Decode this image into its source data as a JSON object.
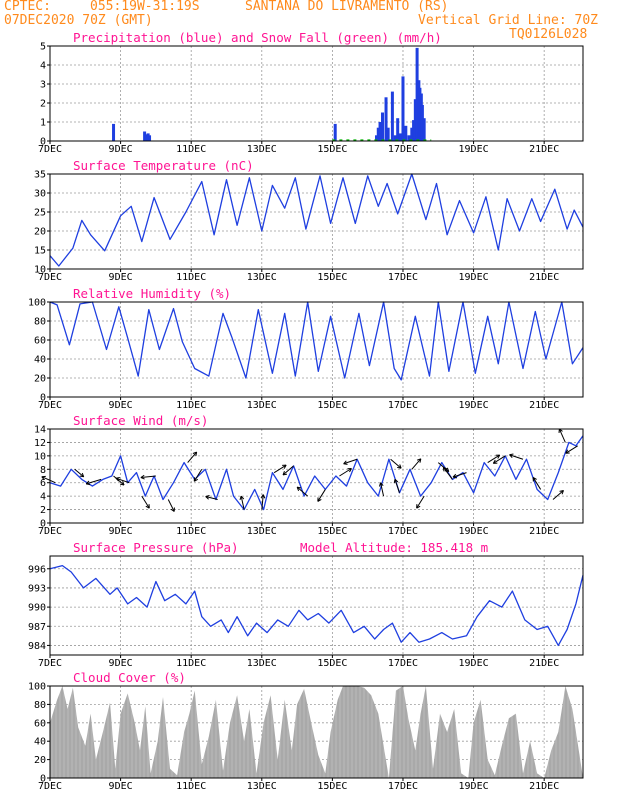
{
  "header": {
    "source": "CPTEC:",
    "coords": "055:19W-31:19S",
    "location": "SANTANA DO LIVRAMENTO (RS)",
    "init": "07DEC2020 70Z (GMT)",
    "grid_note": "Vertical Grid Line: 70Z",
    "product": "TQ0126L028"
  },
  "colors": {
    "header": "#ff8a1c",
    "panel_title": "#ff1493",
    "series": "#1f3fe0",
    "snow": "#00b000",
    "cloud": "#a9a9a9",
    "arrow": "#000000",
    "grid": "#9a9a9a"
  },
  "x_axis": {
    "tick_labels": [
      "7DEC",
      "9DEC",
      "11DEC",
      "13DEC",
      "15DEC",
      "17DEC",
      "19DEC",
      "21DEC"
    ],
    "tick_days": [
      0,
      2,
      4,
      6,
      8,
      10,
      12,
      14
    ],
    "range_days": [
      0,
      15.1
    ]
  },
  "chart_data": [
    {
      "type": "bar",
      "title": "Precipitation (blue) and Snow Fall (green) (mm/h)",
      "ylim": [
        0,
        5
      ],
      "yticks": [
        0,
        1,
        2,
        3,
        4,
        5
      ],
      "series": [
        {
          "name": "Precipitation",
          "x": [
            1.8,
            2.68,
            2.72,
            2.78,
            2.82,
            8.08,
            9.25,
            9.3,
            9.35,
            9.42,
            9.52,
            9.58,
            9.7,
            9.78,
            9.85,
            9.92,
            10.0,
            10.08,
            10.17,
            10.25,
            10.3,
            10.35,
            10.4,
            10.45,
            10.48,
            10.52,
            10.55,
            10.6
          ],
          "values": [
            0.9,
            0.5,
            0.35,
            0.4,
            0.3,
            0.9,
            0.3,
            0.7,
            1.0,
            1.5,
            2.3,
            0.7,
            2.6,
            0.3,
            1.2,
            0.4,
            3.4,
            0.8,
            0.3,
            0.7,
            1.1,
            2.2,
            4.9,
            3.2,
            2.8,
            2.5,
            1.9,
            1.2
          ]
        },
        {
          "name": "Snow Fall",
          "x": [],
          "values": []
        }
      ]
    },
    {
      "type": "line",
      "title": "Surface Temperature (nC)",
      "ylim": [
        10,
        35
      ],
      "yticks": [
        10,
        15,
        20,
        25,
        30,
        35
      ],
      "x": [
        0,
        0.25,
        0.65,
        0.9,
        1.15,
        1.55,
        2.0,
        2.3,
        2.6,
        2.95,
        3.4,
        3.85,
        4.3,
        4.65,
        5.0,
        5.3,
        5.65,
        6.0,
        6.3,
        6.65,
        6.95,
        7.25,
        7.65,
        7.95,
        8.3,
        8.65,
        9.0,
        9.3,
        9.55,
        9.85,
        10.25,
        10.65,
        10.95,
        11.25,
        11.6,
        12.0,
        12.35,
        12.7,
        12.95,
        13.3,
        13.65,
        13.9,
        14.3,
        14.65,
        14.85,
        15.1
      ],
      "values": [
        13.5,
        10.8,
        15.5,
        22.8,
        19.0,
        14.8,
        24.0,
        26.5,
        17.2,
        28.8,
        17.8,
        25.0,
        33.0,
        19.0,
        33.5,
        21.5,
        34.0,
        20.0,
        32.0,
        26.0,
        34.0,
        20.5,
        34.5,
        22.0,
        34.0,
        22.0,
        34.5,
        26.5,
        32.5,
        24.5,
        35.0,
        23.0,
        32.5,
        19.0,
        28.0,
        19.5,
        29.0,
        15.0,
        28.5,
        20.0,
        28.5,
        22.5,
        31.0,
        20.5,
        25.5,
        21.0
      ]
    },
    {
      "type": "line",
      "title": "Relative Humidity (%)",
      "ylim": [
        0,
        100
      ],
      "yticks": [
        0,
        20,
        40,
        60,
        80,
        100
      ],
      "x": [
        0,
        0.2,
        0.55,
        0.85,
        1.2,
        1.6,
        1.95,
        2.2,
        2.5,
        2.8,
        3.1,
        3.5,
        3.75,
        4.1,
        4.5,
        4.9,
        5.15,
        5.55,
        5.9,
        6.3,
        6.65,
        6.95,
        7.3,
        7.6,
        7.95,
        8.35,
        8.75,
        9.05,
        9.45,
        9.75,
        9.95,
        10.35,
        10.75,
        11.0,
        11.3,
        11.7,
        12.05,
        12.4,
        12.7,
        13.0,
        13.4,
        13.75,
        14.05,
        14.5,
        14.8,
        15.1
      ],
      "values": [
        100,
        97,
        55,
        98,
        100,
        50,
        95,
        62,
        22,
        92,
        50,
        93,
        58,
        30,
        22,
        88,
        63,
        20,
        92,
        25,
        88,
        22,
        100,
        27,
        85,
        20,
        88,
        33,
        100,
        30,
        18,
        85,
        22,
        100,
        27,
        100,
        25,
        85,
        35,
        100,
        30,
        90,
        40,
        100,
        35,
        52
      ]
    },
    {
      "type": "line",
      "title": "Surface Wind (m/s)",
      "ylim": [
        0,
        14
      ],
      "yticks": [
        0,
        2,
        4,
        6,
        8,
        10,
        12,
        14
      ],
      "x": [
        0,
        0.3,
        0.6,
        0.9,
        1.2,
        1.5,
        1.75,
        2.0,
        2.2,
        2.45,
        2.7,
        2.95,
        3.2,
        3.5,
        3.8,
        4.1,
        4.4,
        4.7,
        5.0,
        5.2,
        5.5,
        5.8,
        6.05,
        6.3,
        6.6,
        6.9,
        7.2,
        7.5,
        7.8,
        8.1,
        8.4,
        8.7,
        9.0,
        9.3,
        9.6,
        9.9,
        10.2,
        10.5,
        10.8,
        11.1,
        11.4,
        11.7,
        12.0,
        12.3,
        12.6,
        12.9,
        13.2,
        13.5,
        13.8,
        14.1,
        14.4,
        14.7,
        14.9,
        15.1
      ],
      "values": [
        6.0,
        5.5,
        8.0,
        6.5,
        5.5,
        6.5,
        7.0,
        10.0,
        6.0,
        7.5,
        4.0,
        7.0,
        3.5,
        6.0,
        9.0,
        6.5,
        8.0,
        3.5,
        8.0,
        4.0,
        2.0,
        5.0,
        2.0,
        7.5,
        5.0,
        8.5,
        4.0,
        7.0,
        5.0,
        7.0,
        5.5,
        9.5,
        6.0,
        4.0,
        9.5,
        4.5,
        8.0,
        4.0,
        6.0,
        9.0,
        6.5,
        7.5,
        4.5,
        9.0,
        7.0,
        10.0,
        6.5,
        9.5,
        5.0,
        3.5,
        7.5,
        12.0,
        11.5,
        13.0
      ],
      "vectors": [
        {
          "day": 0.15,
          "dx": -0.9,
          "dy": 0.4
        },
        {
          "day": 0.7,
          "dx": 0.6,
          "dy": -0.5
        },
        {
          "day": 1.45,
          "dx": -1.0,
          "dy": -0.3
        },
        {
          "day": 1.8,
          "dx": 0.7,
          "dy": -0.6
        },
        {
          "day": 2.25,
          "dx": -0.9,
          "dy": 0.3
        },
        {
          "day": 2.6,
          "dx": 0.5,
          "dy": -0.8
        },
        {
          "day": 3.0,
          "dx": -1.0,
          "dy": -0.1
        },
        {
          "day": 3.35,
          "dx": 0.4,
          "dy": -0.8
        },
        {
          "day": 3.9,
          "dx": 0.6,
          "dy": 0.7
        },
        {
          "day": 4.3,
          "dx": -0.5,
          "dy": -0.8
        },
        {
          "day": 4.75,
          "dx": -0.8,
          "dy": 0.2
        },
        {
          "day": 5.5,
          "dx": -0.2,
          "dy": 0.9
        },
        {
          "day": 6.0,
          "dx": 0.1,
          "dy": 1.0
        },
        {
          "day": 6.35,
          "dx": 0.8,
          "dy": 0.5
        },
        {
          "day": 6.9,
          "dx": -0.7,
          "dy": -0.6
        },
        {
          "day": 7.3,
          "dx": -0.7,
          "dy": 0.6
        },
        {
          "day": 7.8,
          "dx": -0.5,
          "dy": -0.8
        },
        {
          "day": 8.2,
          "dx": 0.8,
          "dy": 0.5
        },
        {
          "day": 8.7,
          "dx": -0.9,
          "dy": -0.3
        },
        {
          "day": 9.45,
          "dx": -0.2,
          "dy": 0.9
        },
        {
          "day": 9.65,
          "dx": 0.7,
          "dy": -0.6
        },
        {
          "day": 9.9,
          "dx": -0.3,
          "dy": 0.9
        },
        {
          "day": 10.25,
          "dx": 0.6,
          "dy": 0.7
        },
        {
          "day": 10.6,
          "dx": -0.5,
          "dy": -0.8
        },
        {
          "day": 11.0,
          "dx": 0.7,
          "dy": -0.6
        },
        {
          "day": 11.4,
          "dx": -0.6,
          "dy": 0.8
        },
        {
          "day": 11.8,
          "dx": -0.9,
          "dy": -0.3
        },
        {
          "day": 12.4,
          "dx": 0.8,
          "dy": 0.5
        },
        {
          "day": 12.9,
          "dx": -0.8,
          "dy": -0.5
        },
        {
          "day": 13.4,
          "dx": -0.9,
          "dy": 0.3
        },
        {
          "day": 13.9,
          "dx": -0.5,
          "dy": 0.8
        },
        {
          "day": 14.25,
          "dx": 0.7,
          "dy": 0.6
        },
        {
          "day": 14.6,
          "dx": -0.4,
          "dy": 0.9
        },
        {
          "day": 14.95,
          "dx": -0.8,
          "dy": -0.5
        }
      ]
    },
    {
      "type": "line",
      "title": "Surface Pressure (hPa)",
      "annotation": "Model Altitude: 185.418 m",
      "ylim": [
        982.5,
        998
      ],
      "yticks": [
        984,
        987,
        990,
        993,
        996
      ],
      "x": [
        0,
        0.35,
        0.6,
        0.95,
        1.3,
        1.7,
        1.9,
        2.2,
        2.45,
        2.75,
        3.0,
        3.25,
        3.55,
        3.85,
        4.1,
        4.3,
        4.55,
        4.85,
        5.05,
        5.3,
        5.6,
        5.85,
        6.15,
        6.45,
        6.75,
        7.05,
        7.3,
        7.6,
        7.9,
        8.25,
        8.6,
        8.9,
        9.2,
        9.45,
        9.7,
        9.95,
        10.2,
        10.45,
        10.75,
        11.1,
        11.4,
        11.8,
        12.1,
        12.45,
        12.8,
        13.1,
        13.45,
        13.8,
        14.1,
        14.4,
        14.65,
        14.9,
        15.1
      ],
      "values": [
        996.0,
        996.5,
        995.5,
        993.0,
        994.5,
        992.0,
        993.0,
        990.5,
        991.5,
        990.0,
        994.0,
        991.0,
        992.0,
        990.5,
        992.5,
        988.5,
        987.0,
        988.0,
        986.0,
        988.5,
        985.5,
        987.5,
        986.0,
        988.0,
        987.0,
        989.5,
        988.0,
        989.0,
        987.5,
        989.5,
        986.0,
        987.0,
        985.0,
        986.5,
        987.5,
        984.5,
        986.0,
        984.5,
        985.0,
        986.0,
        985.0,
        985.5,
        988.5,
        991.0,
        990.0,
        992.5,
        988.0,
        986.5,
        987.0,
        984.0,
        986.5,
        990.5,
        995.0
      ]
    },
    {
      "type": "area",
      "title": "Cloud Cover (%)",
      "ylim": [
        0,
        100
      ],
      "yticks": [
        0,
        20,
        40,
        60,
        80,
        100
      ],
      "x": [
        0,
        0.2,
        0.35,
        0.5,
        0.65,
        0.8,
        1.0,
        1.15,
        1.3,
        1.5,
        1.7,
        1.85,
        2.0,
        2.2,
        2.4,
        2.55,
        2.7,
        2.85,
        3.05,
        3.2,
        3.4,
        3.6,
        3.8,
        3.95,
        4.1,
        4.3,
        4.5,
        4.7,
        4.9,
        5.1,
        5.3,
        5.5,
        5.65,
        5.85,
        6.05,
        6.25,
        6.45,
        6.65,
        6.85,
        7.0,
        7.2,
        7.4,
        7.6,
        7.8,
        7.95,
        8.15,
        8.3,
        8.5,
        8.7,
        8.9,
        9.1,
        9.3,
        9.45,
        9.6,
        9.8,
        10.0,
        10.15,
        10.35,
        10.5,
        10.65,
        10.85,
        11.05,
        11.25,
        11.45,
        11.65,
        11.85,
        12.0,
        12.2,
        12.4,
        12.6,
        12.8,
        13.0,
        13.2,
        13.4,
        13.6,
        13.8,
        14.0,
        14.2,
        14.4,
        14.6,
        14.8,
        15.0,
        15.1
      ],
      "values": [
        60,
        85,
        100,
        75,
        98,
        55,
        35,
        70,
        20,
        50,
        82,
        10,
        70,
        92,
        60,
        30,
        78,
        5,
        40,
        88,
        10,
        3,
        50,
        70,
        95,
        15,
        45,
        85,
        8,
        60,
        90,
        40,
        75,
        5,
        60,
        90,
        20,
        85,
        30,
        80,
        97,
        60,
        25,
        5,
        50,
        85,
        100,
        100,
        100,
        98,
        90,
        70,
        35,
        0,
        95,
        100,
        65,
        30,
        70,
        100,
        10,
        70,
        50,
        75,
        5,
        0,
        60,
        85,
        20,
        3,
        35,
        65,
        70,
        5,
        40,
        5,
        0,
        30,
        50,
        100,
        75,
        25,
        0
      ]
    }
  ]
}
